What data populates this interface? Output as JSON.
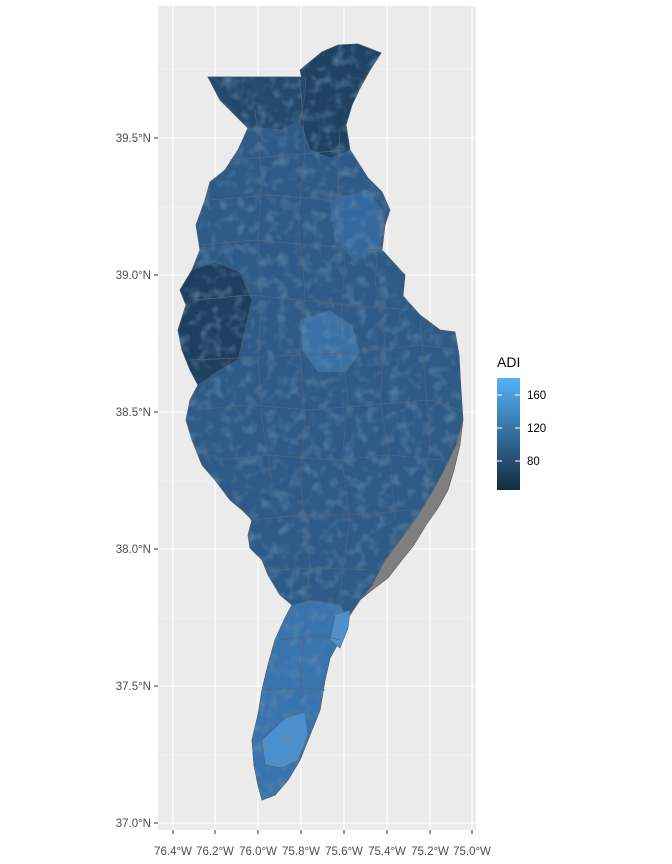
{
  "map": {
    "type": "choropleth",
    "fill_variable": "ADI",
    "missing_color": "#7f7f7f",
    "panel_background": "#ebebeb",
    "grid_color": "#ffffff",
    "border_color": "#595959",
    "x_axis": {
      "range_deg_west": [
        76.4,
        75.0
      ],
      "ticks": [
        {
          "value": -76.4,
          "label": "76.4°W"
        },
        {
          "value": -76.2,
          "label": "76.2°W"
        },
        {
          "value": -76.0,
          "label": "76.0°W"
        },
        {
          "value": -75.8,
          "label": "75.8°W"
        },
        {
          "value": -75.6,
          "label": "75.6°W"
        },
        {
          "value": -75.4,
          "label": "75.4°W"
        },
        {
          "value": -75.2,
          "label": "75.2°W"
        },
        {
          "value": -75.0,
          "label": "75.0°W"
        }
      ]
    },
    "y_axis": {
      "range_deg_north": [
        37.0,
        39.5
      ],
      "ticks": [
        {
          "value": 37.0,
          "label": "37.0°N"
        },
        {
          "value": 37.5,
          "label": "37.5°N"
        },
        {
          "value": 38.0,
          "label": "38.0°N"
        },
        {
          "value": 38.5,
          "label": "38.5°N"
        },
        {
          "value": 39.0,
          "label": "39.0°N"
        },
        {
          "value": 39.5,
          "label": "39.5°N"
        }
      ]
    },
    "legend": {
      "title": "ADI",
      "position": "right",
      "low_color": "#132b43",
      "high_color": "#56b1f7",
      "labels": [
        {
          "value": 80,
          "label": "80"
        },
        {
          "value": 120,
          "label": "120"
        },
        {
          "value": 160,
          "label": "160"
        }
      ]
    }
  }
}
